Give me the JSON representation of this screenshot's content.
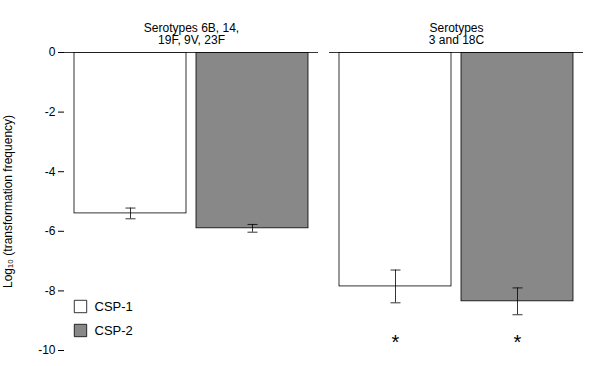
{
  "chart_data": {
    "type": "bar",
    "categories": [
      "Serotypes 6B, 14,\n19F, 9V, 23F",
      "Serotypes\n3 and 18C"
    ],
    "series": [
      {
        "name": "CSP-1",
        "color": "#ffffff",
        "values": [
          -5.4,
          -7.85
        ],
        "errors": [
          0.18,
          0.55
        ]
      },
      {
        "name": "CSP-2",
        "color": "#888888",
        "values": [
          -5.9,
          -8.35
        ],
        "errors": [
          0.13,
          0.45
        ]
      }
    ],
    "ylabel": "Log₁₀ (transformation frequency)",
    "ylim": [
      -10,
      0
    ],
    "yticks": [
      0,
      -2,
      -4,
      -6,
      -8,
      -10
    ],
    "legend": "lower left",
    "grid": false,
    "annotations": [
      {
        "text": "*",
        "category": "Serotypes\n3 and 18C",
        "series": "CSP-1",
        "y": -9.6
      },
      {
        "text": "*",
        "category": "Serotypes\n3 and 18C",
        "series": "CSP-2",
        "y": -9.6
      }
    ]
  }
}
